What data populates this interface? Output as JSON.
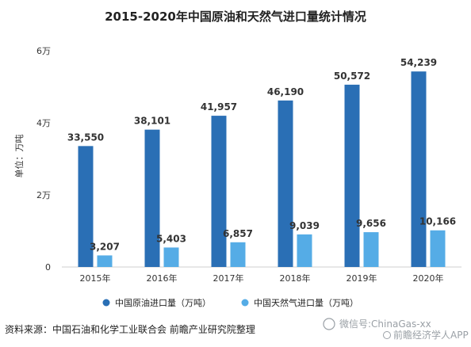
{
  "chart_data": {
    "type": "bar",
    "title": "2015-2020年中国原油和天然气进口量统计情况",
    "ylabel": "单位：万吨",
    "ylim": [
      0,
      60000
    ],
    "yticks": [
      0,
      20000,
      40000,
      60000
    ],
    "ytick_labels": [
      "0",
      "2万",
      "4万",
      "6万"
    ],
    "categories": [
      "2015年",
      "2016年",
      "2017年",
      "2018年",
      "2019年",
      "2020年"
    ],
    "series": [
      {
        "name": "中国原油进口量（万吨）",
        "color": "#2a6fb5",
        "values": [
          33550,
          38101,
          41957,
          46190,
          50572,
          54239
        ],
        "labels": [
          "33,550",
          "38,101",
          "41,957",
          "46,190",
          "50,572",
          "54,239"
        ]
      },
      {
        "name": "中国天然气进口量（万吨）",
        "color": "#55ace6",
        "values": [
          3207,
          5403,
          6857,
          9039,
          9656,
          10166
        ],
        "labels": [
          "3,207",
          "5,403",
          "6,857",
          "9,039",
          "9,656",
          "10,166"
        ]
      }
    ],
    "grid": false,
    "legend": "bottom"
  },
  "footer": {
    "source": "资料来源：中国石油和化学工业联合会 前瞻产业研究院整理",
    "wechat": "微信号:ChinaGas-xx",
    "app": "前瞻经济学人APP"
  }
}
